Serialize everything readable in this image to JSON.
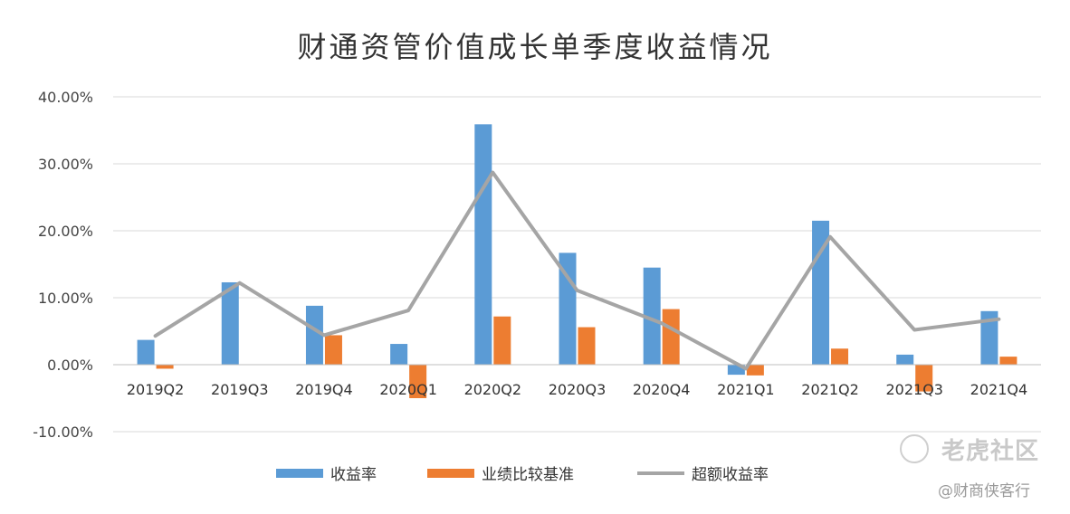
{
  "chart_data": {
    "type": "bar",
    "title": "财通资管价值成长单季度收益情况",
    "categories": [
      "2019Q2",
      "2019Q3",
      "2019Q4",
      "2020Q1",
      "2020Q2",
      "2020Q3",
      "2020Q4",
      "2021Q1",
      "2021Q2",
      "2021Q3",
      "2021Q4"
    ],
    "series": [
      {
        "name": "收益率",
        "kind": "bar",
        "color": "#5b9bd5",
        "values": [
          3.7,
          12.3,
          8.8,
          3.1,
          35.9,
          16.7,
          14.5,
          -1.5,
          21.5,
          1.5,
          8.0
        ]
      },
      {
        "name": "业绩比较基准",
        "kind": "bar",
        "color": "#ed7d31",
        "values": [
          -0.6,
          0.0,
          4.4,
          -5.0,
          7.2,
          5.6,
          8.3,
          -1.6,
          2.4,
          -4.0,
          1.2
        ]
      },
      {
        "name": "超额收益率",
        "kind": "line",
        "color": "#a5a5a5",
        "values": [
          4.3,
          12.2,
          4.4,
          8.1,
          28.7,
          11.1,
          6.2,
          -0.6,
          19.1,
          5.2,
          6.8
        ]
      }
    ],
    "yticks": [
      "40.00%",
      "30.00%",
      "20.00%",
      "10.00%",
      "0.00%",
      "-10.00%"
    ],
    "ylim": [
      -10,
      40
    ],
    "grid": true,
    "legend_position": "bottom"
  },
  "watermark": {
    "line1": "老虎社区",
    "line2": "@财商侠客行"
  }
}
